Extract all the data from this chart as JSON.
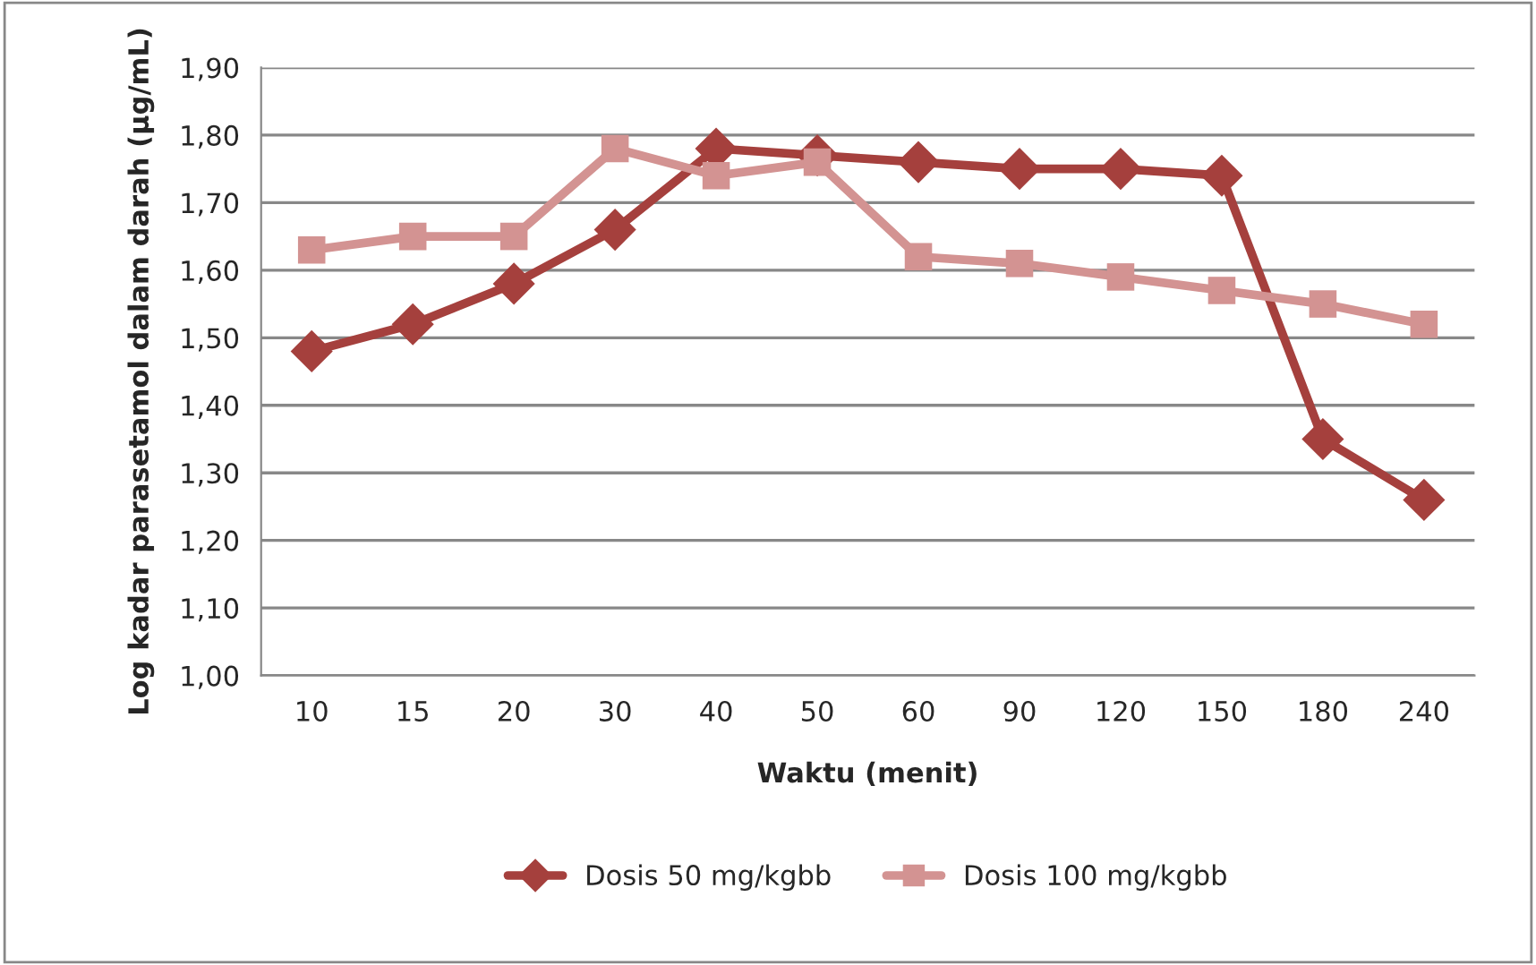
{
  "chart_data": {
    "type": "line",
    "xlabel": "Waktu (menit)",
    "ylabel": "Log kadar parasetamol dalam darah (µg/mL)",
    "categories": [
      "10",
      "15",
      "20",
      "30",
      "40",
      "50",
      "60",
      "90",
      "120",
      "150",
      "180",
      "240"
    ],
    "series": [
      {
        "name": "Dosis 50 mg/kgbb",
        "color": "#a5403d",
        "marker": "diamond",
        "values": [
          1.48,
          1.52,
          1.58,
          1.66,
          1.78,
          1.77,
          1.76,
          1.75,
          1.75,
          1.74,
          1.35,
          1.26
        ]
      },
      {
        "name": "Dosis 100 mg/kgbb",
        "color": "#d39392",
        "marker": "square",
        "values": [
          1.63,
          1.65,
          1.65,
          1.78,
          1.74,
          1.76,
          1.62,
          1.61,
          1.59,
          1.57,
          1.55,
          1.52
        ]
      }
    ],
    "ylim": [
      1.0,
      1.9
    ],
    "yticks": [
      {
        "value": 1.0,
        "label": "1,00"
      },
      {
        "value": 1.1,
        "label": "1,10"
      },
      {
        "value": 1.2,
        "label": "1,20"
      },
      {
        "value": 1.3,
        "label": "1,30"
      },
      {
        "value": 1.4,
        "label": "1,40"
      },
      {
        "value": 1.5,
        "label": "1,50"
      },
      {
        "value": 1.6,
        "label": "1,60"
      },
      {
        "value": 1.7,
        "label": "1,70"
      },
      {
        "value": 1.8,
        "label": "1,80"
      },
      {
        "value": 1.9,
        "label": "1,90"
      }
    ],
    "grid": "y",
    "legend": "bottom",
    "line_style": "solid"
  }
}
